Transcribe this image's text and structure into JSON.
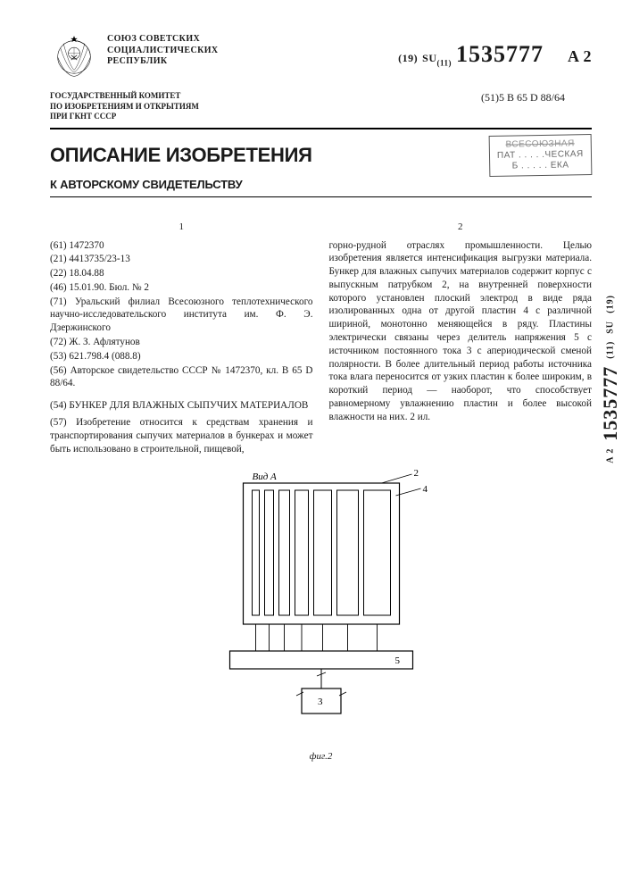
{
  "header": {
    "issuer_l1": "СОЮЗ СОВЕТСКИХ",
    "issuer_l2": "СОЦИАЛИСТИЧЕСКИХ",
    "issuer_l3": "РЕСПУБЛИК",
    "doc_prefix_19": "(19)",
    "doc_su": "SU",
    "doc_prefix_11": "(11)",
    "doc_number": "1535777",
    "doc_suffix": "A 2",
    "committee_l1": "ГОСУДАРСТВЕННЫЙ КОМИТЕТ",
    "committee_l2": "ПО ИЗОБРЕТЕНИЯМ И ОТКРЫТИЯМ",
    "committee_l3": "ПРИ ГКНТ СССР",
    "ipc": "(51)5 B 65 D 88/64"
  },
  "title": {
    "main": "ОПИСАНИЕ ИЗОБРЕТЕНИЯ",
    "sub": "К АВТОРСКОМУ СВИДЕТЕЛЬСТВУ",
    "stamp_l1": "ВСЕСОЮЗНАЯ",
    "stamp_l2": "ПАТ . . . . .ЧЕСКАЯ",
    "stamp_l3": "Б . . . . . ЕКА"
  },
  "biblio": {
    "f61": "(61) 1472370",
    "f21": "(21) 4413735/23-13",
    "f22": "(22) 18.04.88",
    "f46": "(46) 15.01.90. Бюл. № 2",
    "f71": "(71) Уральский филиал Всесоюзного теплотехнического научно-исследовательского института им. Ф. Э. Дзержинского",
    "f72": "(72) Ж. З. Афлятунов",
    "f53": "(53) 621.798.4 (088.8)",
    "f56": "(56) Авторское свидетельство СССР № 1472370, кл. B 65 D 88/64.",
    "f54": "(54) БУНКЕР ДЛЯ ВЛАЖНЫХ СЫПУЧИХ МАТЕРИАЛОВ",
    "f57_a": "(57) Изобретение относится к средствам хранения и транспортирования сыпучих материалов в бункерах и может быть использовано в строительной, пищевой,",
    "f57_b": "горно-рудной отраслях промышленности. Целью изобретения является интенсификация выгрузки материала. Бункер для влажных сыпучих материалов содержит корпус с выпускным патрубком 2, на внутренней поверхности которого установлен плоский электрод в виде ряда изолированных одна от другой пластин 4 с различной шириной, монотонно меняющейся в ряду. Пластины электрически связаны через делитель напряжения 5 с источником постоянного тока 3 с апериодической сменой полярности. В более длительный период работы источника тока влага переносится от узких пластин к более широким, в короткий период — наоборот, что способствует равномерному увлажнению пластин и более высокой влажности на них. 2 ил."
  },
  "diagram": {
    "label_top": "Вид А",
    "label_2": "2",
    "label_4": "4",
    "label_5": "5",
    "label_3": "3",
    "caption": "фиг.2",
    "plate_widths": [
      8,
      10,
      12,
      15,
      20,
      24,
      30
    ],
    "plate_height": 140,
    "gap": 6,
    "line_color": "#000000",
    "bg": "#ffffff"
  },
  "sidecode": {
    "p19": "(19)",
    "su": "SU",
    "p11": "(11)",
    "num": "1535777",
    "suf": "A 2"
  }
}
